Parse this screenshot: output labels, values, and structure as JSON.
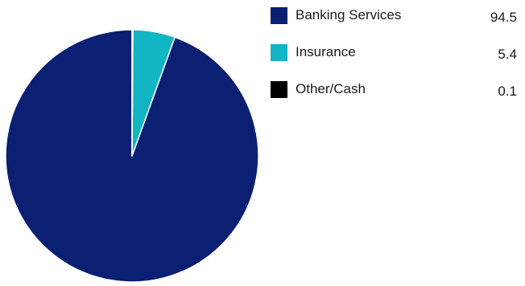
{
  "chart_data": {
    "type": "pie",
    "title": "",
    "slices": [
      {
        "label": "Banking Services",
        "value": 94.5,
        "color": "#0b1f73"
      },
      {
        "label": "Insurance",
        "value": 5.4,
        "color": "#12b5c4"
      },
      {
        "label": "Other/Cash",
        "value": 0.1,
        "color": "#000000"
      }
    ],
    "legend_position": "right"
  }
}
